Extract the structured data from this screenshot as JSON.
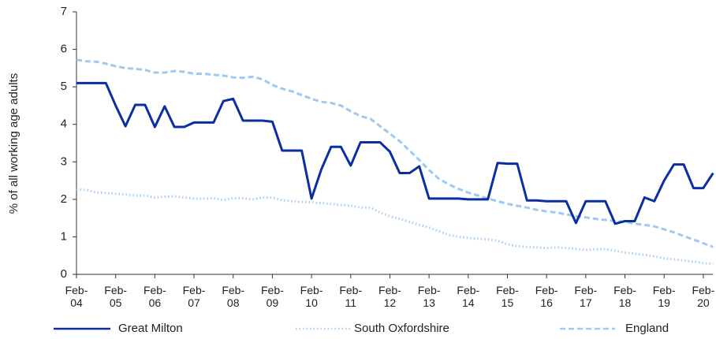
{
  "chart_data": {
    "type": "line",
    "y_label": "% of all working age adults",
    "categories": [
      "Feb-04",
      null,
      null,
      null,
      "Feb-05",
      null,
      null,
      null,
      "Feb-06",
      null,
      null,
      null,
      "Feb-07",
      null,
      null,
      null,
      "Feb-08",
      null,
      null,
      null,
      "Feb-09",
      null,
      null,
      null,
      "Feb-10",
      null,
      null,
      null,
      "Feb-11",
      null,
      null,
      null,
      "Feb-12",
      null,
      null,
      null,
      "Feb-13",
      null,
      null,
      null,
      "Feb-14",
      null,
      null,
      null,
      "Feb-15",
      null,
      null,
      null,
      "Feb-16",
      null,
      null,
      null,
      "Feb-17",
      null,
      null,
      null,
      "Feb-18",
      null,
      null,
      null,
      "Feb-19",
      null,
      null,
      null,
      "Feb-20",
      null
    ],
    "series": [
      {
        "name": "Great Milton",
        "color": "#0b2ea3",
        "style": "solid",
        "values": [
          5.1,
          5.1,
          5.1,
          5.1,
          4.5,
          3.95,
          4.52,
          4.52,
          3.93,
          4.48,
          3.93,
          3.93,
          4.05,
          4.05,
          4.05,
          4.62,
          4.68,
          4.1,
          4.1,
          4.1,
          4.07,
          3.3,
          3.3,
          3.3,
          2.02,
          2.8,
          3.4,
          3.4,
          2.9,
          3.52,
          3.52,
          3.52,
          3.27,
          2.7,
          2.7,
          2.88,
          2.02,
          2.02,
          2.02,
          2.02,
          2.0,
          2.0,
          2.0,
          2.97,
          2.95,
          2.95,
          1.97,
          1.97,
          1.95,
          1.95,
          1.95,
          1.37,
          1.95,
          1.95,
          1.95,
          1.35,
          1.42,
          1.42,
          2.05,
          1.95,
          2.5,
          2.93,
          2.93,
          2.3,
          2.3,
          2.7
        ]
      },
      {
        "name": "South Oxfordshire",
        "color": "#a9cff3",
        "style": "dotted",
        "values": [
          2.27,
          2.25,
          2.18,
          2.17,
          2.15,
          2.13,
          2.1,
          2.1,
          2.05,
          2.07,
          2.08,
          2.05,
          2.02,
          2.02,
          2.03,
          1.98,
          2.03,
          2.03,
          2.0,
          2.05,
          2.05,
          1.98,
          1.95,
          1.93,
          1.92,
          1.9,
          1.88,
          1.85,
          1.83,
          1.78,
          1.78,
          1.65,
          1.55,
          1.48,
          1.4,
          1.32,
          1.25,
          1.15,
          1.05,
          1.0,
          0.97,
          0.95,
          0.93,
          0.9,
          0.8,
          0.75,
          0.73,
          0.72,
          0.7,
          0.72,
          0.7,
          0.68,
          0.65,
          0.67,
          0.67,
          0.63,
          0.58,
          0.55,
          0.52,
          0.48,
          0.43,
          0.4,
          0.37,
          0.34,
          0.3,
          0.28
        ]
      },
      {
        "name": "England",
        "color": "#9ec9f1",
        "style": "dashed",
        "values": [
          5.72,
          5.68,
          5.67,
          5.62,
          5.55,
          5.5,
          5.48,
          5.45,
          5.38,
          5.38,
          5.42,
          5.4,
          5.35,
          5.35,
          5.32,
          5.3,
          5.25,
          5.24,
          5.27,
          5.2,
          5.05,
          4.95,
          4.88,
          4.78,
          4.68,
          4.6,
          4.57,
          4.5,
          4.35,
          4.22,
          4.15,
          3.95,
          3.75,
          3.55,
          3.3,
          3.05,
          2.78,
          2.55,
          2.4,
          2.28,
          2.18,
          2.1,
          2.02,
          1.95,
          1.88,
          1.83,
          1.78,
          1.72,
          1.68,
          1.65,
          1.6,
          1.55,
          1.52,
          1.48,
          1.45,
          1.42,
          1.4,
          1.35,
          1.32,
          1.28,
          1.2,
          1.12,
          1.02,
          0.93,
          0.83,
          0.73
        ]
      }
    ],
    "ylim": [
      0,
      7
    ],
    "yticks": [
      0,
      1,
      2,
      3,
      4,
      5,
      6,
      7
    ],
    "grid": false,
    "legend": "bottom"
  }
}
